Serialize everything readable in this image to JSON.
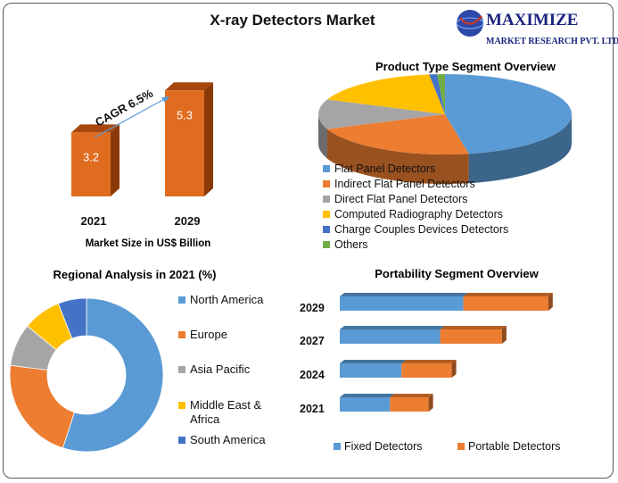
{
  "title": "X-ray Detectors Market",
  "logo": {
    "name": "MAXIMIZE",
    "tagline": "MARKET RESEARCH PVT. LTD."
  },
  "colors": {
    "blue": "#5b9bd5",
    "orange": "#ed7d31",
    "gray": "#a5a5a5",
    "yellow": "#ffc000",
    "darkblue": "#4472c4",
    "green": "#70ad47",
    "bar_orange": "#e06c1f"
  },
  "chart_data": [
    {
      "type": "bar",
      "name": "market-size",
      "categories": [
        "2021",
        "2029"
      ],
      "values": [
        3.2,
        5.3
      ],
      "value_labels": [
        "3.2",
        "5.3"
      ],
      "xlabel": "Market Size in US$ Billion",
      "annotation": "CAGR 6.5%"
    },
    {
      "type": "pie",
      "name": "product-type",
      "title": "Product Type Segment Overview",
      "categories": [
        "Flat Panel Detectors",
        "Indirect Flat Panel Detectors",
        "Direct Flat Panel Detectors",
        "Computed Radiography Detectors",
        "Charge Couples Devices Detectors",
        "Others"
      ],
      "values": [
        47,
        22,
        12,
        17,
        1,
        1
      ],
      "colors": [
        "#5b9bd5",
        "#ed7d31",
        "#a5a5a5",
        "#ffc000",
        "#4472c4",
        "#70ad47"
      ]
    },
    {
      "type": "pie",
      "name": "regional",
      "title": "Regional Analysis in 2021 (%)",
      "categories": [
        "North America",
        "Europe",
        "Asia Pacific",
        "Middle East & Africa",
        "South America"
      ],
      "values": [
        55,
        22,
        9,
        8,
        6
      ],
      "colors": [
        "#5b9bd5",
        "#ed7d31",
        "#a5a5a5",
        "#ffc000",
        "#4472c4"
      ]
    },
    {
      "type": "bar",
      "name": "portability",
      "orientation": "horizontal",
      "stacked": true,
      "title": "Portability Segment Overview",
      "categories": [
        "2029",
        "2027",
        "2024",
        "2021"
      ],
      "series": [
        {
          "name": "Fixed Detectors",
          "values": [
            3.2,
            2.6,
            1.6,
            1.3
          ],
          "color": "#5b9bd5"
        },
        {
          "name": "Portable Detectors",
          "values": [
            2.2,
            1.6,
            1.3,
            1.0
          ],
          "color": "#ed7d31"
        }
      ]
    }
  ]
}
